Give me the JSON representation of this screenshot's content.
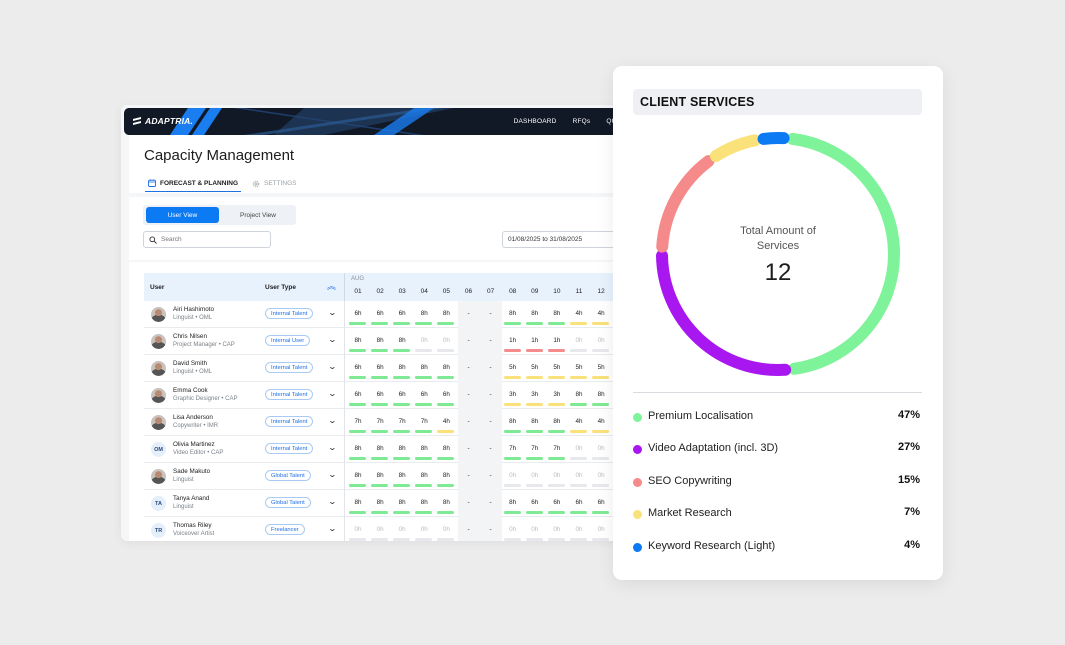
{
  "app": {
    "logo_text": "ADAPTRIA.",
    "nav": [
      "DASHBOARD",
      "RFQs",
      "QUOTES"
    ],
    "page_title": "Capacity Management",
    "tabs": [
      {
        "label": "FORECAST & PLANNING",
        "active": true
      },
      {
        "label": "SETTINGS",
        "active": false
      }
    ],
    "view_toggle": {
      "user_view": "User View",
      "project_view": "Project View",
      "selected": "User View"
    },
    "search": {
      "placeholder": "Search",
      "value": ""
    },
    "date_range": "01/08/2025 to 31/08/2025",
    "grid": {
      "col_user": "User",
      "col_user_type": "User Type",
      "month": "AUG",
      "days": [
        "01",
        "02",
        "03",
        "04",
        "05",
        "06",
        "07",
        "08",
        "09",
        "10",
        "11",
        "12"
      ],
      "weekend_days": [
        "06",
        "07"
      ],
      "rows": [
        {
          "name": "Airi Hashimoto",
          "role": "Linguist • OML",
          "avatar": "photo",
          "initials": "",
          "type": "Internal Talent",
          "hours": [
            "6h",
            "6h",
            "6h",
            "8h",
            "8h",
            "-",
            "-",
            "8h",
            "8h",
            "8h",
            "4h",
            "4h"
          ],
          "status": [
            "green",
            "green",
            "green",
            "green",
            "green",
            "none",
            "none",
            "green",
            "green",
            "green",
            "yellow",
            "yellow"
          ]
        },
        {
          "name": "Chris Nilsen",
          "role": "Project Manager • CAP",
          "avatar": "photo",
          "initials": "",
          "type": "Internal User",
          "hours": [
            "8h",
            "8h",
            "8h",
            "0h",
            "0h",
            "-",
            "-",
            "1h",
            "1h",
            "1h",
            "0h",
            "0h"
          ],
          "status": [
            "green",
            "green",
            "green",
            "empty",
            "empty",
            "none",
            "none",
            "red",
            "red",
            "red",
            "empty",
            "empty"
          ]
        },
        {
          "name": "David Smith",
          "role": "Linguist • OML",
          "avatar": "photo",
          "initials": "",
          "type": "Internal Talent",
          "hours": [
            "6h",
            "6h",
            "8h",
            "8h",
            "8h",
            "-",
            "-",
            "5h",
            "5h",
            "5h",
            "5h",
            "5h"
          ],
          "status": [
            "green",
            "green",
            "green",
            "green",
            "green",
            "none",
            "none",
            "yellow",
            "yellow",
            "yellow",
            "yellow",
            "yellow"
          ]
        },
        {
          "name": "Emma Cook",
          "role": "Graphic Designer • CAP",
          "avatar": "photo",
          "initials": "",
          "type": "Internal Talent",
          "hours": [
            "6h",
            "6h",
            "6h",
            "6h",
            "6h",
            "-",
            "-",
            "3h",
            "3h",
            "3h",
            "8h",
            "8h"
          ],
          "status": [
            "green",
            "green",
            "green",
            "green",
            "green",
            "none",
            "none",
            "yellow",
            "yellow",
            "yellow",
            "green",
            "green"
          ]
        },
        {
          "name": "Lisa Anderson",
          "role": "Copywriter • IMR",
          "avatar": "photo",
          "initials": "",
          "type": "Internal Talent",
          "hours": [
            "7h",
            "7h",
            "7h",
            "7h",
            "4h",
            "-",
            "-",
            "8h",
            "8h",
            "8h",
            "4h",
            "4h"
          ],
          "status": [
            "green",
            "green",
            "green",
            "green",
            "yellow",
            "none",
            "none",
            "green",
            "green",
            "green",
            "yellow",
            "yellow"
          ]
        },
        {
          "name": "Olivia Martinez",
          "role": "Video Editor • CAP",
          "avatar": "initials",
          "initials": "OM",
          "type": "Internal Talent",
          "hours": [
            "8h",
            "8h",
            "8h",
            "8h",
            "8h",
            "-",
            "-",
            "7h",
            "7h",
            "7h",
            "0h",
            "0h"
          ],
          "status": [
            "green",
            "green",
            "green",
            "green",
            "green",
            "none",
            "none",
            "green",
            "green",
            "green",
            "empty",
            "empty"
          ]
        },
        {
          "name": "Sade Makuto",
          "role": "Linguist",
          "avatar": "photo",
          "initials": "",
          "type": "Global Talent",
          "hours": [
            "8h",
            "8h",
            "8h",
            "8h",
            "8h",
            "-",
            "-",
            "0h",
            "0h",
            "0h",
            "0h",
            "0h"
          ],
          "status": [
            "green",
            "green",
            "green",
            "green",
            "green",
            "none",
            "none",
            "empty",
            "empty",
            "empty",
            "empty",
            "empty"
          ]
        },
        {
          "name": "Tanya Anand",
          "role": "Linguist",
          "avatar": "initials",
          "initials": "TA",
          "type": "Global Talent",
          "hours": [
            "8h",
            "8h",
            "8h",
            "8h",
            "8h",
            "-",
            "-",
            "8h",
            "6h",
            "6h",
            "6h",
            "6h"
          ],
          "status": [
            "green",
            "green",
            "green",
            "green",
            "green",
            "none",
            "none",
            "green",
            "green",
            "green",
            "green",
            "green"
          ]
        },
        {
          "name": "Thomas Riley",
          "role": "Voiceover Artist",
          "avatar": "initials",
          "initials": "TR",
          "type": "Freelancer",
          "hours": [
            "0h",
            "0h",
            "0h",
            "0h",
            "0h",
            "-",
            "-",
            "0h",
            "0h",
            "0h",
            "0h",
            "0h"
          ],
          "status": [
            "empty",
            "empty",
            "empty",
            "empty",
            "empty",
            "none",
            "none",
            "empty",
            "empty",
            "empty",
            "empty",
            "empty"
          ]
        }
      ]
    }
  },
  "colors": {
    "green": "#7eea93",
    "yellow": "#fbe17a",
    "red": "#f48c8c",
    "empty": "#e6e8eb",
    "accent": "#0b7af3"
  },
  "client_services": {
    "title": "CLIENT SERVICES",
    "center_label": "Total Amount of Services",
    "center_value": "12",
    "chart_data": {
      "type": "pie",
      "title": "CLIENT SERVICES",
      "categories": [
        "Premium Localisation",
        "Video Adaptation (incl. 3D)",
        "SEO Copywriting",
        "Market Research",
        "Keyword Research (Light)"
      ],
      "values": [
        47,
        27,
        15,
        7,
        4
      ],
      "colors": [
        "#7ef39a",
        "#a817f0",
        "#f58a8a",
        "#fbe17a",
        "#0b7af3"
      ],
      "total": 12
    },
    "legend": [
      {
        "label": "Premium Localisation",
        "pct": "47%",
        "color": "#7ef39a"
      },
      {
        "label": "Video Adaptation (incl. 3D)",
        "pct": "27%",
        "color": "#a817f0"
      },
      {
        "label": "SEO Copywriting",
        "pct": "15%",
        "color": "#f58a8a"
      },
      {
        "label": "Market Research",
        "pct": "7%",
        "color": "#fbe17a"
      },
      {
        "label": "Keyword Research (Light)",
        "pct": "4%",
        "color": "#0b7af3"
      }
    ]
  }
}
